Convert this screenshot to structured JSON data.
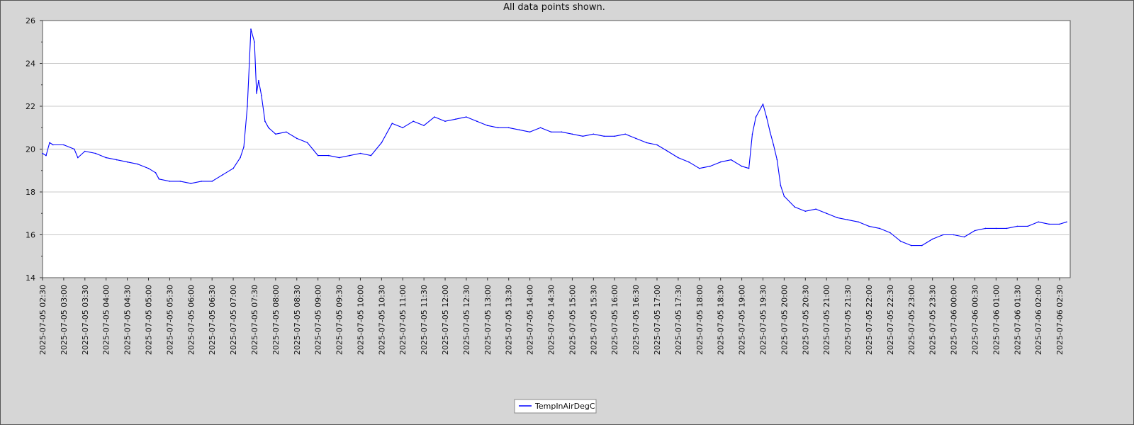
{
  "chart_data": {
    "type": "line",
    "title": "All data points shown.",
    "xlabel": "",
    "ylabel": "",
    "ylim": [
      14,
      26
    ],
    "yticks": [
      14,
      16,
      18,
      20,
      22,
      24,
      26
    ],
    "xlim": [
      "2025-07-05 02:30",
      "2025-07-06 02:45"
    ],
    "xticks": [
      "2025-07-05 02:30",
      "2025-07-05 03:00",
      "2025-07-05 03:30",
      "2025-07-05 04:00",
      "2025-07-05 04:30",
      "2025-07-05 05:00",
      "2025-07-05 05:30",
      "2025-07-05 06:00",
      "2025-07-05 06:30",
      "2025-07-05 07:00",
      "2025-07-05 07:30",
      "2025-07-05 08:00",
      "2025-07-05 08:30",
      "2025-07-05 09:00",
      "2025-07-05 09:30",
      "2025-07-05 10:00",
      "2025-07-05 10:30",
      "2025-07-05 11:00",
      "2025-07-05 11:30",
      "2025-07-05 12:00",
      "2025-07-05 12:30",
      "2025-07-05 13:00",
      "2025-07-05 13:30",
      "2025-07-05 14:00",
      "2025-07-05 14:30",
      "2025-07-05 15:00",
      "2025-07-05 15:30",
      "2025-07-05 16:00",
      "2025-07-05 16:30",
      "2025-07-05 17:00",
      "2025-07-05 17:30",
      "2025-07-05 18:00",
      "2025-07-05 18:30",
      "2025-07-05 19:00",
      "2025-07-05 19:30",
      "2025-07-05 20:00",
      "2025-07-05 20:30",
      "2025-07-05 21:00",
      "2025-07-05 21:30",
      "2025-07-05 22:00",
      "2025-07-05 22:30",
      "2025-07-05 23:00",
      "2025-07-05 23:30",
      "2025-07-06 00:00",
      "2025-07-06 00:30",
      "2025-07-06 01:00",
      "2025-07-06 01:30",
      "2025-07-06 02:00",
      "2025-07-06 02:30"
    ],
    "grid": "horizontal",
    "legend_position": "bottom-center",
    "series": [
      {
        "name": "TempInAirDegC",
        "color": "#0000ff",
        "x": [
          "2025-07-05 02:30",
          "2025-07-05 02:35",
          "2025-07-05 02:40",
          "2025-07-05 02:45",
          "2025-07-05 03:00",
          "2025-07-05 03:15",
          "2025-07-05 03:20",
          "2025-07-05 03:30",
          "2025-07-05 03:45",
          "2025-07-05 04:00",
          "2025-07-05 04:15",
          "2025-07-05 04:30",
          "2025-07-05 04:45",
          "2025-07-05 05:00",
          "2025-07-05 05:10",
          "2025-07-05 05:15",
          "2025-07-05 05:30",
          "2025-07-05 05:45",
          "2025-07-05 06:00",
          "2025-07-05 06:15",
          "2025-07-05 06:30",
          "2025-07-05 06:45",
          "2025-07-05 07:00",
          "2025-07-05 07:10",
          "2025-07-05 07:15",
          "2025-07-05 07:20",
          "2025-07-05 07:25",
          "2025-07-05 07:30",
          "2025-07-05 07:33",
          "2025-07-05 07:36",
          "2025-07-05 07:40",
          "2025-07-05 07:45",
          "2025-07-05 07:50",
          "2025-07-05 08:00",
          "2025-07-05 08:15",
          "2025-07-05 08:30",
          "2025-07-05 08:45",
          "2025-07-05 09:00",
          "2025-07-05 09:15",
          "2025-07-05 09:30",
          "2025-07-05 09:45",
          "2025-07-05 10:00",
          "2025-07-05 10:15",
          "2025-07-05 10:30",
          "2025-07-05 10:45",
          "2025-07-05 11:00",
          "2025-07-05 11:15",
          "2025-07-05 11:30",
          "2025-07-05 11:45",
          "2025-07-05 12:00",
          "2025-07-05 12:15",
          "2025-07-05 12:30",
          "2025-07-05 12:45",
          "2025-07-05 13:00",
          "2025-07-05 13:15",
          "2025-07-05 13:30",
          "2025-07-05 13:45",
          "2025-07-05 14:00",
          "2025-07-05 14:15",
          "2025-07-05 14:30",
          "2025-07-05 14:45",
          "2025-07-05 15:00",
          "2025-07-05 15:15",
          "2025-07-05 15:30",
          "2025-07-05 15:45",
          "2025-07-05 16:00",
          "2025-07-05 16:15",
          "2025-07-05 16:30",
          "2025-07-05 16:45",
          "2025-07-05 17:00",
          "2025-07-05 17:15",
          "2025-07-05 17:30",
          "2025-07-05 17:45",
          "2025-07-05 18:00",
          "2025-07-05 18:15",
          "2025-07-05 18:30",
          "2025-07-05 18:45",
          "2025-07-05 19:00",
          "2025-07-05 19:10",
          "2025-07-05 19:15",
          "2025-07-05 19:20",
          "2025-07-05 19:30",
          "2025-07-05 19:35",
          "2025-07-05 19:40",
          "2025-07-05 19:45",
          "2025-07-05 19:50",
          "2025-07-05 19:55",
          "2025-07-05 20:00",
          "2025-07-05 20:15",
          "2025-07-05 20:30",
          "2025-07-05 20:45",
          "2025-07-05 21:00",
          "2025-07-05 21:15",
          "2025-07-05 21:30",
          "2025-07-05 21:45",
          "2025-07-05 22:00",
          "2025-07-05 22:15",
          "2025-07-05 22:30",
          "2025-07-05 22:45",
          "2025-07-05 23:00",
          "2025-07-05 23:15",
          "2025-07-05 23:30",
          "2025-07-05 23:45",
          "2025-07-06 00:00",
          "2025-07-06 00:15",
          "2025-07-06 00:30",
          "2025-07-06 00:45",
          "2025-07-06 01:00",
          "2025-07-06 01:15",
          "2025-07-06 01:30",
          "2025-07-06 01:45",
          "2025-07-06 02:00",
          "2025-07-06 02:15",
          "2025-07-06 02:30",
          "2025-07-06 02:40"
        ],
        "y": [
          19.8,
          19.7,
          20.3,
          20.2,
          20.2,
          20.0,
          19.6,
          19.9,
          19.8,
          19.6,
          19.5,
          19.4,
          19.3,
          19.1,
          18.9,
          18.6,
          18.5,
          18.5,
          18.4,
          18.5,
          18.5,
          18.8,
          19.1,
          19.6,
          20.1,
          22.0,
          25.6,
          25.0,
          22.6,
          23.2,
          22.5,
          21.3,
          21.0,
          20.7,
          20.8,
          20.5,
          20.3,
          19.7,
          19.7,
          19.6,
          19.7,
          19.8,
          19.7,
          20.3,
          21.2,
          21.0,
          21.3,
          21.1,
          21.5,
          21.3,
          21.4,
          21.5,
          21.3,
          21.1,
          21.0,
          21.0,
          20.9,
          20.8,
          21.0,
          20.8,
          20.8,
          20.7,
          20.6,
          20.7,
          20.6,
          20.6,
          20.7,
          20.5,
          20.3,
          20.2,
          19.9,
          19.6,
          19.4,
          19.1,
          19.2,
          19.4,
          19.5,
          19.2,
          19.1,
          20.7,
          21.5,
          22.1,
          21.5,
          20.8,
          20.2,
          19.5,
          18.3,
          17.8,
          17.3,
          17.1,
          17.2,
          17.0,
          16.8,
          16.7,
          16.6,
          16.4,
          16.3,
          16.1,
          15.7,
          15.5,
          15.5,
          15.8,
          16.0,
          16.0,
          15.9,
          16.2,
          16.3,
          16.3,
          16.3,
          16.4,
          16.4,
          16.6,
          16.5,
          16.5,
          16.6
        ]
      }
    ]
  }
}
